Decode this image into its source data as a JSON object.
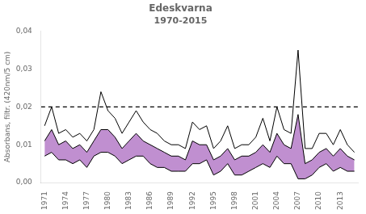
{
  "chart_data": {
    "type": "line",
    "title": "Edeskvarna",
    "subtitle": "1970-2015",
    "ylabel": "Absorbans, filtr. (420nm/5 cm)",
    "x": [
      1971,
      1972,
      1973,
      1974,
      1975,
      1976,
      1977,
      1978,
      1979,
      1980,
      1981,
      1982,
      1983,
      1984,
      1985,
      1986,
      1987,
      1988,
      1989,
      1990,
      1991,
      1992,
      1993,
      1994,
      1995,
      1996,
      1997,
      1998,
      1999,
      2000,
      2001,
      2002,
      2003,
      2004,
      2005,
      2006,
      2007,
      2008,
      2009,
      2010,
      2011,
      2012,
      2013,
      2014,
      2015
    ],
    "color": "#000000",
    "series": [
      {
        "type": "line",
        "values": [
          0.015,
          0.02,
          0.013,
          0.014,
          0.012,
          0.013,
          0.011,
          0.014,
          0.024,
          0.019,
          0.017,
          0.013,
          0.016,
          0.019,
          0.016,
          0.014,
          0.013,
          0.011,
          0.01,
          0.01,
          0.009,
          0.016,
          0.014,
          0.015,
          0.009,
          0.011,
          0.015,
          0.009,
          0.01,
          0.01,
          0.012,
          0.017,
          0.011,
          0.02,
          0.014,
          0.013,
          0.035,
          0.009,
          0.009,
          0.013,
          0.013,
          0.01,
          0.014,
          0.01,
          0.008
        ]
      },
      {
        "type": "area",
        "color": "#c08fd0",
        "values": [
          0.011,
          0.014,
          0.01,
          0.011,
          0.009,
          0.01,
          0.008,
          0.011,
          0.014,
          0.014,
          0.012,
          0.009,
          0.011,
          0.013,
          0.011,
          0.01,
          0.009,
          0.008,
          0.007,
          0.007,
          0.006,
          0.011,
          0.01,
          0.01,
          0.006,
          0.007,
          0.009,
          0.006,
          0.007,
          0.007,
          0.008,
          0.01,
          0.008,
          0.013,
          0.01,
          0.009,
          0.018,
          0.005,
          0.006,
          0.008,
          0.009,
          0.007,
          0.009,
          0.007,
          0.006
        ]
      },
      {
        "type": "line",
        "values": [
          0.007,
          0.008,
          0.006,
          0.006,
          0.005,
          0.006,
          0.004,
          0.007,
          0.008,
          0.008,
          0.007,
          0.005,
          0.006,
          0.007,
          0.007,
          0.005,
          0.004,
          0.004,
          0.003,
          0.003,
          0.003,
          0.005,
          0.005,
          0.006,
          0.002,
          0.003,
          0.005,
          0.002,
          0.002,
          0.003,
          0.004,
          0.005,
          0.004,
          0.007,
          0.005,
          0.005,
          0.001,
          0.001,
          0.002,
          0.004,
          0.005,
          0.003,
          0.004,
          0.003,
          0.003
        ]
      }
    ],
    "hline": {
      "value": 0.02,
      "line_style": "dashed"
    },
    "xlim": [
      1970.5,
      2015.5
    ],
    "xticks": [
      1971,
      1974,
      1977,
      1980,
      1983,
      1986,
      1989,
      1992,
      1995,
      1998,
      2001,
      2004,
      2007,
      2010,
      2013
    ],
    "ylim": [
      0,
      0.04
    ],
    "yticks": [
      {
        "value": 0,
        "label": "0,00"
      },
      {
        "value": 0.01,
        "label": "0,01"
      },
      {
        "value": 0.02,
        "label": "0,02"
      },
      {
        "value": 0.03,
        "label": "0,03"
      },
      {
        "value": 0.04,
        "label": "0,04"
      }
    ],
    "grid": false
  }
}
